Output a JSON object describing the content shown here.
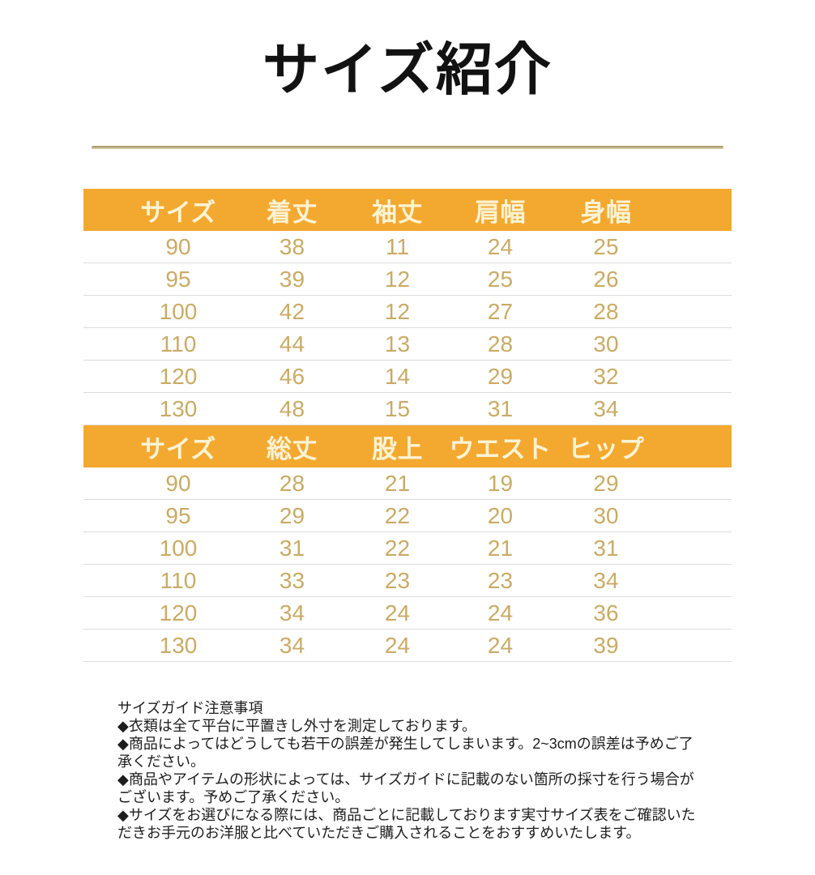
{
  "page": {
    "title": "サイズ紹介"
  },
  "tables": [
    {
      "name": "tops-size-table",
      "headers": [
        "サイズ",
        "着丈",
        "袖丈",
        "肩幅",
        "身幅"
      ],
      "rows": [
        [
          "90",
          "38",
          "11",
          "24",
          "25"
        ],
        [
          "95",
          "39",
          "12",
          "25",
          "26"
        ],
        [
          "100",
          "42",
          "12",
          "27",
          "28"
        ],
        [
          "110",
          "44",
          "13",
          "28",
          "30"
        ],
        [
          "120",
          "46",
          "14",
          "29",
          "32"
        ],
        [
          "130",
          "48",
          "15",
          "31",
          "34"
        ]
      ]
    },
    {
      "name": "bottoms-size-table",
      "headers": [
        "サイズ",
        "総丈",
        "股上",
        "ウエスト",
        "ヒップ"
      ],
      "rows": [
        [
          "90",
          "28",
          "21",
          "19",
          "29"
        ],
        [
          "95",
          "29",
          "22",
          "20",
          "30"
        ],
        [
          "100",
          "31",
          "22",
          "21",
          "31"
        ],
        [
          "110",
          "33",
          "23",
          "23",
          "34"
        ],
        [
          "120",
          "34",
          "24",
          "24",
          "36"
        ],
        [
          "130",
          "34",
          "24",
          "24",
          "39"
        ]
      ]
    }
  ],
  "notes": {
    "heading": "サイズガイド注意事項",
    "items": [
      "◆衣類は全て平台に平置きし外寸を測定しております。",
      "◆商品によってはどうしても若干の誤差が発生してしまいます。2~3cmの誤差は予めご了承ください。",
      "◆商品やアイテムの形状によっては、サイズガイドに記載のない箇所の採寸を行う場合がございます。予めご了承ください。",
      "◆サイズをお選びになる際には、商品ごとに記載しております実寸サイズ表をご確認いただきお手元のお洋服と比べていただきご購入されることをおすすめいたします。"
    ]
  },
  "colors": {
    "header_bg": "#F3A930",
    "header_text": "#FBF3D4",
    "value_text": "#C9AB66",
    "divider_dark": "#9C9060",
    "divider_light": "#DDD3AA",
    "row_separator": "#DCDCDC",
    "note_text": "#1D1D1D"
  }
}
